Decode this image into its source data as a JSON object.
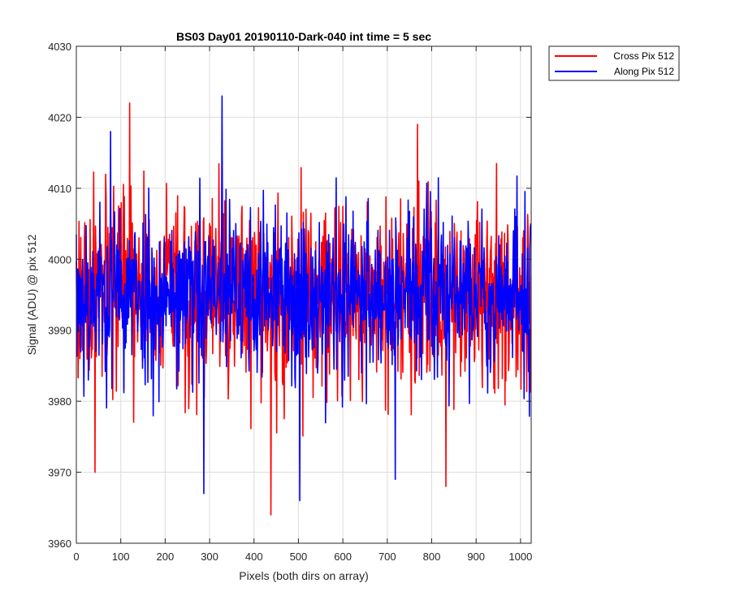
{
  "chart_data": {
    "type": "line",
    "title": "BS03 Day01 20190110-Dark-040 int time = 5 sec",
    "xlabel": "Pixels (both dirs on array)",
    "ylabel": "Signal (ADU) @ pix 512",
    "xlim": [
      0,
      1024
    ],
    "ylim": [
      3960,
      4030
    ],
    "xticks": [
      0,
      100,
      200,
      300,
      400,
      500,
      600,
      700,
      800,
      900,
      1000
    ],
    "yticks": [
      3960,
      3970,
      3980,
      3990,
      4000,
      4010,
      4020,
      4030
    ],
    "grid": true,
    "legend_position": "outside-top-right",
    "series": [
      {
        "name": "Cross Pix 512",
        "color": "#ff0000",
        "sampling": "noise around mean; N points over x range",
        "n_points": 1024,
        "mean": 3995,
        "std": 6.5,
        "seed": 17,
        "highlights": [
          {
            "x": 120,
            "y": 4022
          },
          {
            "x": 438,
            "y": 3964
          },
          {
            "x": 832,
            "y": 3968
          },
          {
            "x": 42,
            "y": 3970
          },
          {
            "x": 768,
            "y": 4019
          }
        ]
      },
      {
        "name": "Along Pix 512",
        "color": "#0000ff",
        "sampling": "noise around mean; N points over x range",
        "n_points": 1024,
        "mean": 3995,
        "std": 6.0,
        "seed": 53,
        "highlights": [
          {
            "x": 328,
            "y": 4023
          },
          {
            "x": 287,
            "y": 3967
          },
          {
            "x": 503,
            "y": 3966
          },
          {
            "x": 718,
            "y": 3969
          },
          {
            "x": 77,
            "y": 4018
          }
        ]
      }
    ]
  },
  "colors": {
    "axis": "#262626",
    "grid": "#dcdcdc",
    "background": "#ffffff"
  }
}
